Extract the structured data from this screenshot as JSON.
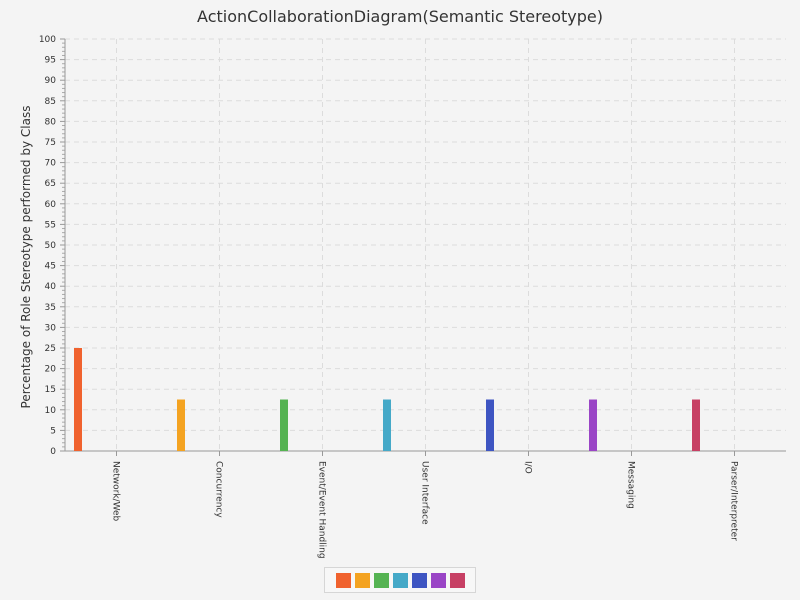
{
  "chart_data": {
    "type": "bar",
    "title": "ActionCollaborationDiagram(Semantic Stereotype)",
    "xlabel": "",
    "ylabel": "Percentage of Role Stereotype performed by Class",
    "ylim": [
      0,
      100
    ],
    "ytick_step": 5,
    "grid": true,
    "legend_position": "bottom",
    "categories": [
      "Network/Web",
      "Concurrency",
      "Event/Event Handling",
      "User Interface",
      "I/O",
      "Messaging",
      "Parser/Interpreter"
    ],
    "values": [
      25,
      12.5,
      12.5,
      12.5,
      12.5,
      12.5,
      12.5
    ],
    "colors": [
      "#f0622e",
      "#f4a321",
      "#55b352",
      "#45a9c8",
      "#3e55c2",
      "#9a45c6",
      "#c74064"
    ]
  }
}
